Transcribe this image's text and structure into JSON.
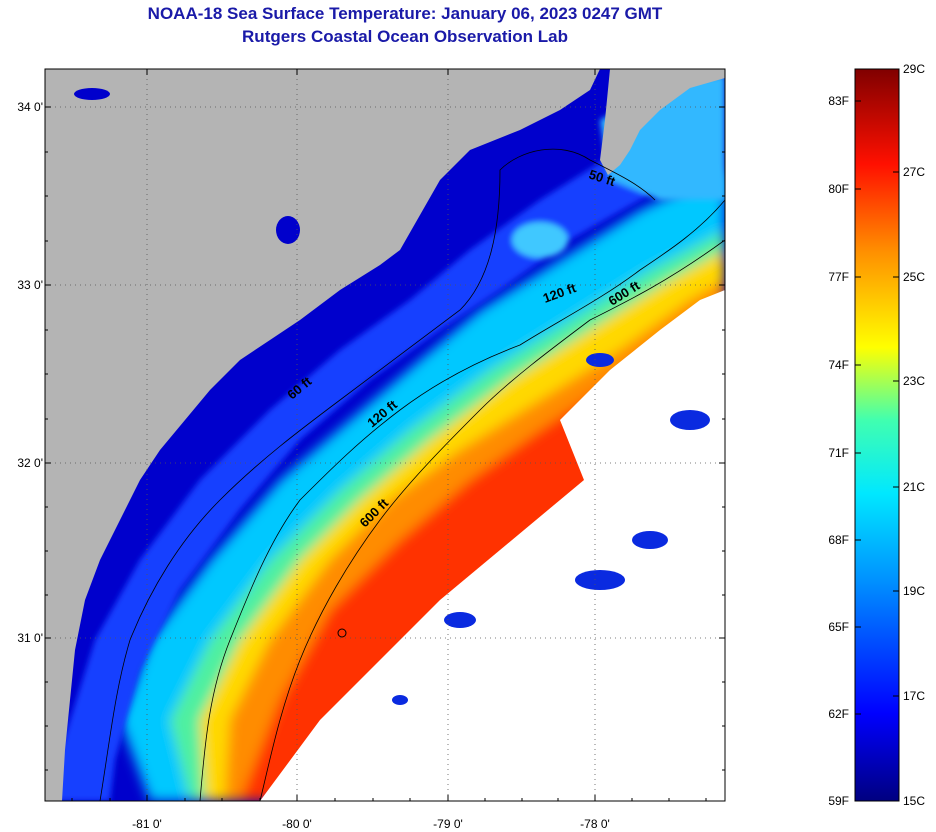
{
  "title": {
    "line1": "NOAA-18 Sea Surface Temperature:  January 06, 2023 0247 GMT",
    "line2": "Rutgers Coastal Ocean Observation Lab"
  },
  "axes": {
    "lat_labels": [
      "34 0'",
      "33 0'",
      "32 0'",
      "31 0'"
    ],
    "lon_labels": [
      "-81 0'",
      "-80 0'",
      "-79 0'",
      "-78 0'"
    ]
  },
  "contours": {
    "c50": "50 ft",
    "c60": "60 ft",
    "c120a": "120 ft",
    "c120b": "120 ft",
    "c600a": "600 ft",
    "c600b": "600 ft"
  },
  "colorbar": {
    "fahrenheit": [
      "83F",
      "80F",
      "77F",
      "74F",
      "71F",
      "68F",
      "65F",
      "62F",
      "59F"
    ],
    "celsius": [
      "29C",
      "27C",
      "25C",
      "23C",
      "21C",
      "19C",
      "17C",
      "15C"
    ]
  },
  "colors": {
    "land": "#b4b4b4",
    "cloud": "#ffffff",
    "title": "#1a1aa8"
  }
}
